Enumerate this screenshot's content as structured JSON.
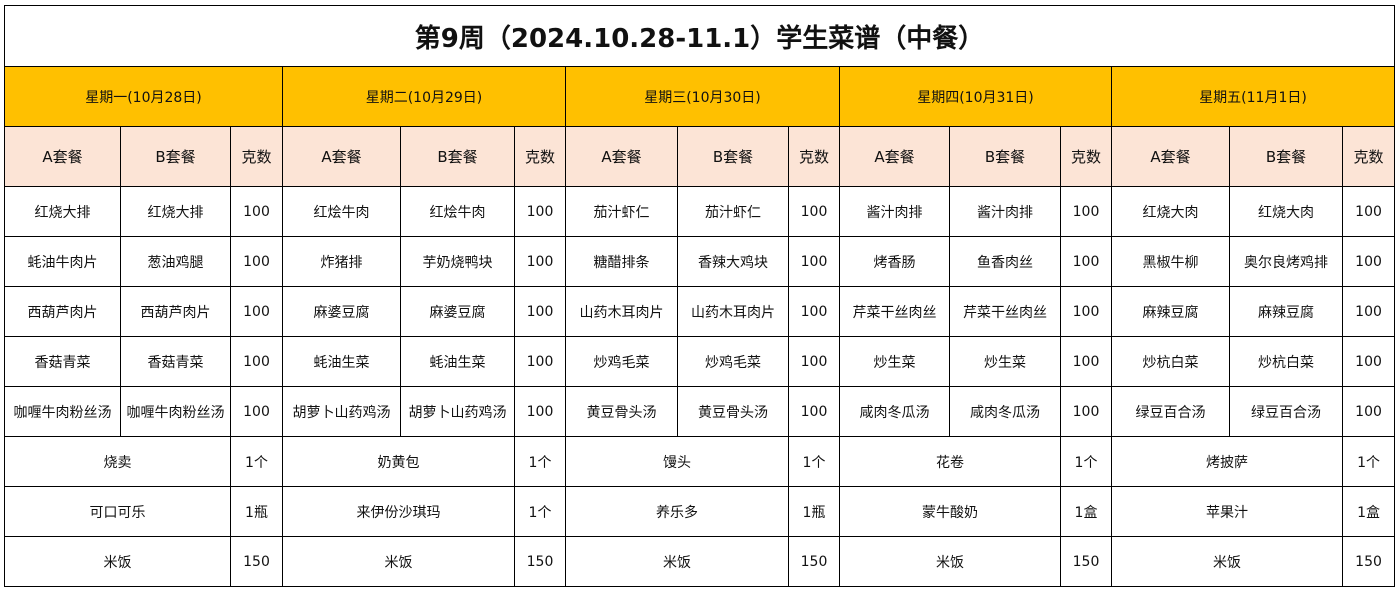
{
  "title": "第9周（2024.10.28-11.1）学生菜谱（中餐）",
  "columns": [
    "A套餐",
    "B套餐",
    "克数"
  ],
  "days": [
    {
      "label": "星期一(10月28日)",
      "items": [
        [
          "红烧大排",
          "红烧大排",
          100
        ],
        [
          "蚝油牛肉片",
          "葱油鸡腿",
          100
        ],
        [
          "西葫芦肉片",
          "西葫芦肉片",
          100
        ],
        [
          "香菇青菜",
          "香菇青菜",
          100
        ],
        [
          "咖喱牛肉粉丝汤",
          "咖喱牛肉粉丝汤",
          100
        ]
      ],
      "extras": [
        [
          "烧卖",
          "1个"
        ],
        [
          "可口可乐",
          "1瓶"
        ],
        [
          "米饭",
          150
        ]
      ]
    },
    {
      "label": "星期二(10月29日)",
      "items": [
        [
          "红烩牛肉",
          "红烩牛肉",
          100
        ],
        [
          "炸猪排",
          "芋奶烧鸭块",
          100
        ],
        [
          "麻婆豆腐",
          "麻婆豆腐",
          100
        ],
        [
          "蚝油生菜",
          "蚝油生菜",
          100
        ],
        [
          "胡萝卜山药鸡汤",
          "胡萝卜山药鸡汤",
          100
        ]
      ],
      "extras": [
        [
          "奶黄包",
          "1个"
        ],
        [
          "来伊份沙琪玛",
          "1个"
        ],
        [
          "米饭",
          150
        ]
      ]
    },
    {
      "label": "星期三(10月30日)",
      "items": [
        [
          "茄汁虾仁",
          "茄汁虾仁",
          100
        ],
        [
          "糖醋排条",
          "香辣大鸡块",
          100
        ],
        [
          "山药木耳肉片",
          "山药木耳肉片",
          100
        ],
        [
          "炒鸡毛菜",
          "炒鸡毛菜",
          100
        ],
        [
          "黄豆骨头汤",
          "黄豆骨头汤",
          100
        ]
      ],
      "extras": [
        [
          "馒头",
          "1个"
        ],
        [
          "养乐多",
          "1瓶"
        ],
        [
          "米饭",
          150
        ]
      ]
    },
    {
      "label": "星期四(10月31日)",
      "items": [
        [
          "酱汁肉排",
          "酱汁肉排",
          100
        ],
        [
          "烤香肠",
          "鱼香肉丝",
          100
        ],
        [
          "芹菜干丝肉丝",
          "芹菜干丝肉丝",
          100
        ],
        [
          "炒生菜",
          "炒生菜",
          100
        ],
        [
          "咸肉冬瓜汤",
          "咸肉冬瓜汤",
          100
        ]
      ],
      "extras": [
        [
          "花卷",
          "1个"
        ],
        [
          "蒙牛酸奶",
          "1盒"
        ],
        [
          "米饭",
          150
        ]
      ]
    },
    {
      "label": "星期五(11月1日)",
      "items": [
        [
          "红烧大肉",
          "红烧大肉",
          100
        ],
        [
          "黑椒牛柳",
          "奥尔良烤鸡排",
          100
        ],
        [
          "麻辣豆腐",
          "麻辣豆腐",
          100
        ],
        [
          "炒杭白菜",
          "炒杭白菜",
          100
        ],
        [
          "绿豆百合汤",
          "绿豆百合汤",
          100
        ]
      ],
      "extras": [
        [
          "烤披萨",
          "1个"
        ],
        [
          "苹果汁",
          "1盒"
        ],
        [
          "米饭",
          150
        ]
      ]
    }
  ]
}
